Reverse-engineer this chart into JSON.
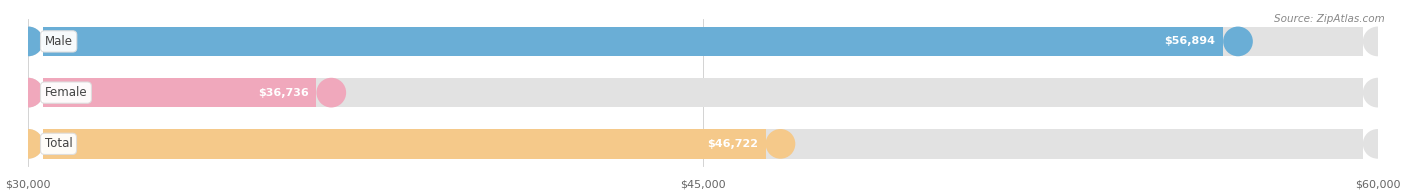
{
  "source": "Source: ZipAtlas.com",
  "categories": [
    "Male",
    "Female",
    "Total"
  ],
  "values": [
    56894,
    36736,
    46722
  ],
  "bar_colors": [
    "#6aaed6",
    "#f0a8bc",
    "#f5c98a"
  ],
  "bar_bg_color": "#e2e2e2",
  "xmin": 30000,
  "xmax": 60000,
  "xticks": [
    30000,
    45000,
    60000
  ],
  "xtick_labels": [
    "$30,000",
    "$45,000",
    "$60,000"
  ],
  "value_labels": [
    "$56,894",
    "$36,736",
    "$46,722"
  ],
  "figsize": [
    14.06,
    1.95
  ],
  "dpi": 100,
  "title_fontsize": 9,
  "source_fontsize": 7.5,
  "tick_fontsize": 8,
  "bar_label_fontsize": 8,
  "cat_label_fontsize": 8.5
}
